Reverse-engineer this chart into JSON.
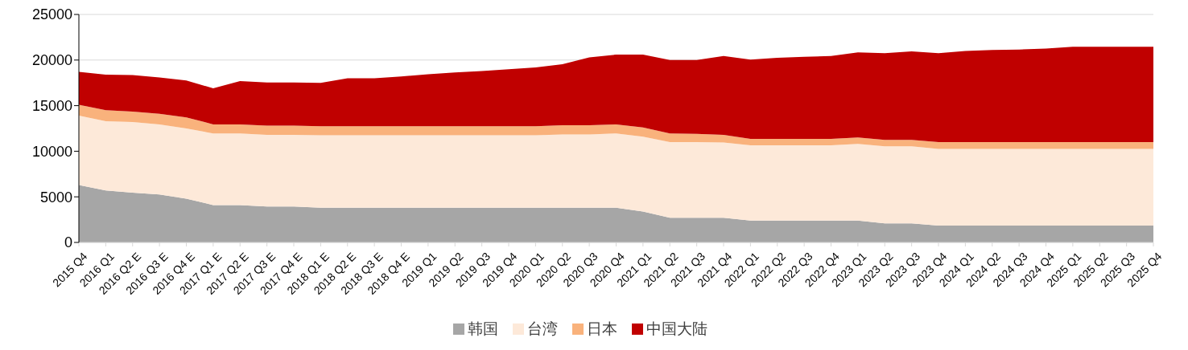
{
  "chart_data": {
    "type": "area",
    "stacked": true,
    "categories": [
      "2015 Q4",
      "2016 Q1",
      "2016 Q2 E",
      "2016 Q3 E",
      "2016 Q4 E",
      "2017 Q1 E",
      "2017 Q2 E",
      "2017 Q3 E",
      "2017 Q4 E",
      "2018 Q1 E",
      "2018 Q2 E",
      "2018 Q3 E",
      "2018 Q4 E",
      "2019 Q1",
      "2019 Q2",
      "2019 Q3",
      "2019 Q4",
      "2020 Q1",
      "2020 Q2",
      "2020 Q3",
      "2020 Q4",
      "2021 Q1",
      "2021 Q2",
      "2021 Q3",
      "2021 Q4",
      "2022 Q1",
      "2022 Q2",
      "2022 Q3",
      "2022 Q4",
      "2023 Q1",
      "2023 Q2",
      "2023 Q3",
      "2023 Q4",
      "2024 Q1",
      "2024 Q2",
      "2024 Q3",
      "2024 Q4",
      "2025 Q1",
      "2025 Q2",
      "2025 Q3",
      "2025 Q4"
    ],
    "series": [
      {
        "name": "韩国",
        "color": "#a6a6a6",
        "values": [
          6300,
          5700,
          5450,
          5250,
          4800,
          4100,
          4100,
          3950,
          3950,
          3800,
          3800,
          3800,
          3800,
          3800,
          3800,
          3800,
          3800,
          3800,
          3800,
          3800,
          3800,
          3400,
          2700,
          2700,
          2700,
          2400,
          2400,
          2400,
          2400,
          2400,
          2100,
          2100,
          1850,
          1850,
          1850,
          1850,
          1850,
          1850,
          1850,
          1850,
          1850
        ]
      },
      {
        "name": "台湾",
        "color": "#fde9d9",
        "values": [
          7600,
          7600,
          7750,
          7700,
          7700,
          7850,
          7850,
          7850,
          7850,
          7950,
          7950,
          7950,
          7950,
          7950,
          7950,
          7950,
          7950,
          7950,
          8050,
          8050,
          8150,
          8200,
          8300,
          8300,
          8250,
          8250,
          8250,
          8250,
          8250,
          8400,
          8450,
          8450,
          8400,
          8400,
          8400,
          8400,
          8400,
          8400,
          8400,
          8400,
          8400
        ]
      },
      {
        "name": "日本",
        "color": "#f9b27c",
        "values": [
          1200,
          1200,
          1150,
          1150,
          1200,
          1000,
          1000,
          1000,
          1000,
          1000,
          1000,
          1000,
          1000,
          1000,
          1000,
          1000,
          1000,
          1000,
          1000,
          1000,
          1000,
          1000,
          950,
          900,
          850,
          700,
          700,
          700,
          700,
          700,
          700,
          700,
          750,
          750,
          750,
          750,
          750,
          750,
          750,
          750,
          750
        ]
      },
      {
        "name": "中国大陆",
        "color": "#c00000",
        "values": [
          3600,
          3900,
          4000,
          4000,
          4050,
          3950,
          4750,
          4750,
          4750,
          4750,
          5250,
          5250,
          5450,
          5700,
          5900,
          6050,
          6250,
          6450,
          6700,
          7450,
          7650,
          8000,
          8050,
          8100,
          8650,
          8700,
          8900,
          9000,
          9100,
          9350,
          9500,
          9700,
          9750,
          10000,
          10100,
          10150,
          10250,
          10450,
          10450,
          10450,
          10450
        ]
      }
    ],
    "ylim": [
      0,
      25000
    ],
    "yticks": [
      0,
      5000,
      10000,
      15000,
      20000,
      25000
    ],
    "grid": "y",
    "legend": "bottom"
  }
}
